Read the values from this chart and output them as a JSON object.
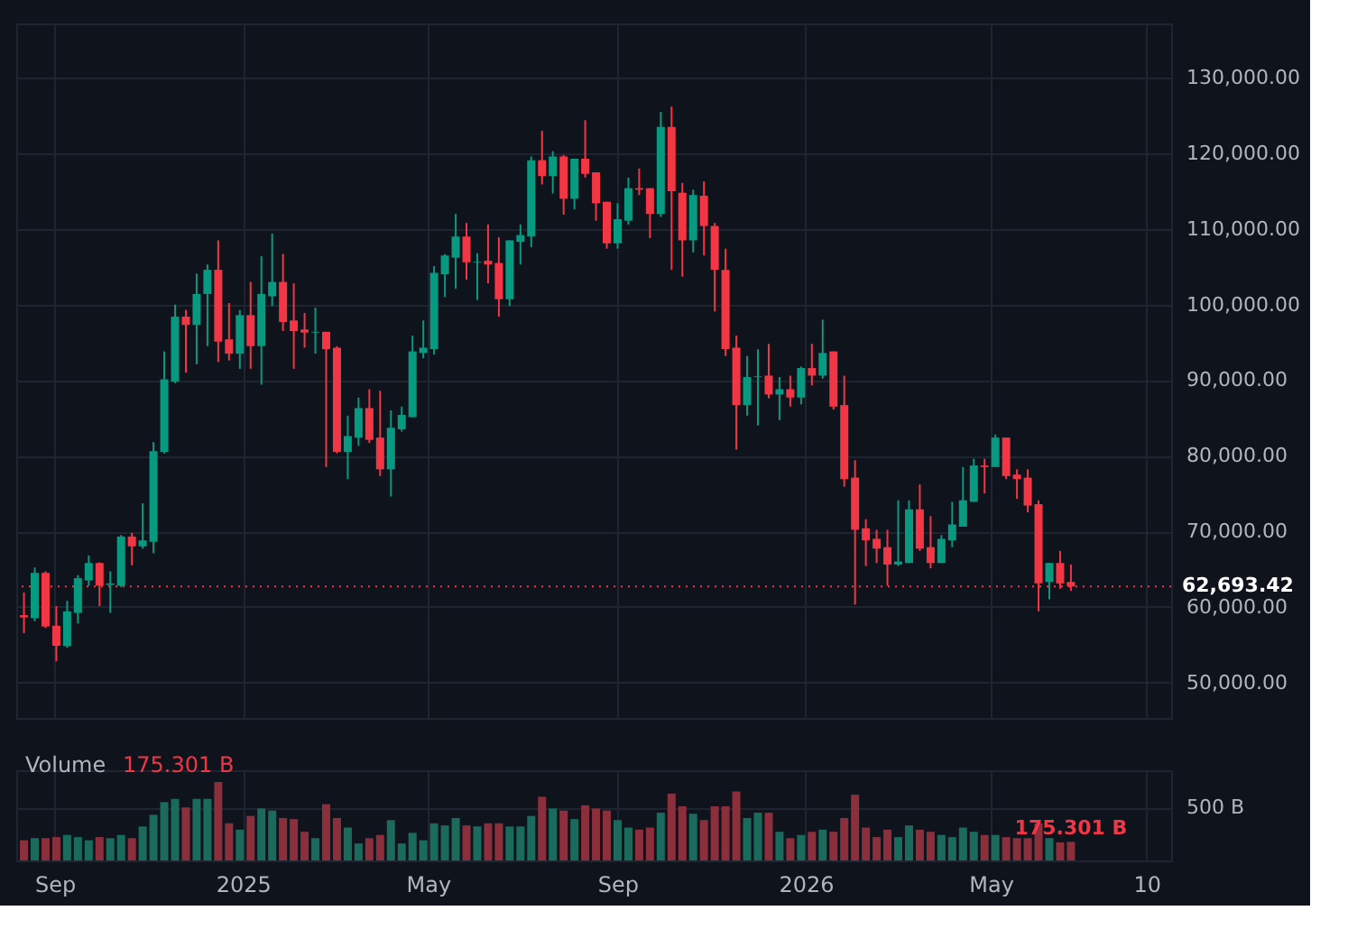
{
  "chart_data": [
    {
      "type": "candlestick",
      "x": [
        "2024-08-12",
        "2024-08-19",
        "2024-08-26",
        "2024-09-02",
        "2024-09-09",
        "2024-09-16",
        "2024-09-23",
        "2024-09-30",
        "2024-10-07",
        "2024-10-14",
        "2024-10-21",
        "2024-10-28",
        "2024-11-04",
        "2024-11-11",
        "2024-11-18",
        "2024-11-25",
        "2024-12-02",
        "2024-12-09",
        "2024-12-16",
        "2024-12-23",
        "2024-12-30",
        "2025-01-06",
        "2025-01-13",
        "2025-01-20",
        "2025-01-27",
        "2025-02-03",
        "2025-02-10",
        "2025-02-17",
        "2025-02-24",
        "2025-03-03",
        "2025-03-10",
        "2025-03-17",
        "2025-03-24",
        "2025-03-31",
        "2025-04-07",
        "2025-04-14",
        "2025-04-21",
        "2025-04-28",
        "2025-05-05",
        "2025-05-12",
        "2025-05-19",
        "2025-05-26",
        "2025-06-02",
        "2025-06-09",
        "2025-06-16",
        "2025-06-23",
        "2025-06-30",
        "2025-07-07",
        "2025-07-14",
        "2025-07-21",
        "2025-07-28",
        "2025-08-04",
        "2025-08-11",
        "2025-08-18",
        "2025-08-25",
        "2025-09-01",
        "2025-09-08",
        "2025-09-15",
        "2025-09-22",
        "2025-09-29",
        "2025-10-06",
        "2025-10-13",
        "2025-10-20",
        "2025-10-27",
        "2025-11-03",
        "2025-11-10",
        "2025-11-17",
        "2025-11-24",
        "2025-12-01",
        "2025-12-08",
        "2025-12-15",
        "2025-12-22",
        "2025-12-29",
        "2026-01-05",
        "2026-01-12",
        "2026-01-19",
        "2026-01-26",
        "2026-02-02",
        "2026-02-09",
        "2026-02-16",
        "2026-02-23",
        "2026-03-02",
        "2026-03-09",
        "2026-03-16",
        "2026-03-23",
        "2026-03-30",
        "2026-04-06",
        "2026-04-13",
        "2026-04-20",
        "2026-04-27",
        "2026-05-04",
        "2026-05-11",
        "2026-05-18",
        "2026-05-25",
        "2026-06-01",
        "2026-06-08",
        "2026-06-15",
        "2026-06-22"
      ],
      "ohlc": [
        [
          58900,
          61900,
          56500,
          58600
        ],
        [
          58500,
          65200,
          58100,
          64500
        ],
        [
          64500,
          64700,
          57200,
          57400
        ],
        [
          57500,
          60100,
          52800,
          54850
        ],
        [
          54800,
          60800,
          54600,
          59400
        ],
        [
          59200,
          64200,
          57800,
          63800
        ],
        [
          63500,
          66800,
          62800,
          65800
        ],
        [
          65800,
          65900,
          60100,
          62800
        ],
        [
          62900,
          64700,
          59200,
          63100
        ],
        [
          62800,
          69500,
          62600,
          69300
        ],
        [
          69300,
          69800,
          65500,
          68000
        ],
        [
          68000,
          73700,
          67700,
          68800
        ],
        [
          68600,
          81800,
          67100,
          80600
        ],
        [
          80500,
          93800,
          80300,
          90100
        ],
        [
          89800,
          100000,
          89600,
          98400
        ],
        [
          98400,
          99300,
          91000,
          97300
        ],
        [
          97300,
          104100,
          92100,
          101400
        ],
        [
          101400,
          105300,
          94500,
          104600
        ],
        [
          104600,
          108500,
          92400,
          95100
        ],
        [
          95400,
          100200,
          92600,
          93500
        ],
        [
          93500,
          99300,
          91500,
          98600
        ],
        [
          98600,
          103000,
          91500,
          94500
        ],
        [
          94500,
          106400,
          89400,
          101400
        ],
        [
          101100,
          109400,
          99800,
          103000
        ],
        [
          103000,
          106700,
          96500,
          97700
        ],
        [
          97900,
          102800,
          91500,
          96500
        ],
        [
          96700,
          98900,
          94300,
          96300
        ],
        [
          96300,
          99600,
          93500,
          96400
        ],
        [
          96400,
          96400,
          78500,
          94100
        ],
        [
          94300,
          94500,
          80300,
          80500
        ],
        [
          80500,
          85300,
          76900,
          82600
        ],
        [
          82400,
          87700,
          81300,
          86300
        ],
        [
          86300,
          88800,
          81700,
          82100
        ],
        [
          82400,
          88600,
          77300,
          78200
        ],
        [
          78200,
          86000,
          74600,
          83700
        ],
        [
          83500,
          86500,
          83200,
          85400
        ],
        [
          85100,
          95900,
          85100,
          93800
        ],
        [
          93600,
          97900,
          92900,
          94300
        ],
        [
          94100,
          105100,
          93400,
          104200
        ],
        [
          104000,
          106700,
          101000,
          106500
        ],
        [
          106200,
          112000,
          102100,
          109000
        ],
        [
          109000,
          110800,
          103300,
          105600
        ],
        [
          105600,
          106800,
          100600,
          105700
        ],
        [
          105800,
          110600,
          102800,
          105300
        ],
        [
          105500,
          108900,
          98400,
          100700
        ],
        [
          100700,
          108500,
          99800,
          108500
        ],
        [
          108300,
          110600,
          105300,
          109200
        ],
        [
          109000,
          119600,
          107600,
          119100
        ],
        [
          119100,
          123000,
          115900,
          117000
        ],
        [
          117000,
          120300,
          114700,
          119600
        ],
        [
          119600,
          119800,
          111900,
          114000
        ],
        [
          114000,
          119300,
          112600,
          119300
        ],
        [
          119300,
          124400,
          116800,
          117300
        ],
        [
          117500,
          117500,
          111100,
          113400
        ],
        [
          113600,
          113600,
          107400,
          108100
        ],
        [
          108100,
          113400,
          107400,
          111300
        ],
        [
          111100,
          116800,
          110600,
          115400
        ],
        [
          115400,
          118000,
          114500,
          115200
        ],
        [
          115400,
          115400,
          108800,
          112000
        ],
        [
          112000,
          125500,
          111600,
          123500
        ],
        [
          123500,
          126200,
          104600,
          115000
        ],
        [
          114800,
          116100,
          103700,
          108500
        ],
        [
          108500,
          115200,
          106900,
          114500
        ],
        [
          114400,
          116300,
          106500,
          110400
        ],
        [
          110400,
          110800,
          99100,
          104600
        ],
        [
          104600,
          107400,
          93200,
          94100
        ],
        [
          94300,
          95900,
          80800,
          86700
        ],
        [
          86700,
          93200,
          85300,
          90400
        ],
        [
          90400,
          94100,
          84000,
          90500
        ],
        [
          90600,
          94800,
          87600,
          88100
        ],
        [
          88100,
          90400,
          84700,
          88800
        ],
        [
          88800,
          90600,
          86500,
          87700
        ],
        [
          87700,
          91800,
          86800,
          91600
        ],
        [
          91600,
          94800,
          89300,
          90600
        ],
        [
          90600,
          98000,
          90200,
          93600
        ],
        [
          93800,
          93800,
          86100,
          86500
        ],
        [
          86700,
          90600,
          75900,
          76900
        ],
        [
          77100,
          79400,
          60300,
          70200
        ],
        [
          70400,
          71600,
          65400,
          68800
        ],
        [
          69000,
          70200,
          65800,
          67700
        ],
        [
          67900,
          70200,
          62800,
          65600
        ],
        [
          65600,
          74100,
          65400,
          66000
        ],
        [
          65800,
          74100,
          65800,
          72900
        ],
        [
          72900,
          76200,
          67400,
          67700
        ],
        [
          67900,
          72000,
          65100,
          65800
        ],
        [
          65800,
          69500,
          65800,
          69000
        ],
        [
          68800,
          73900,
          67900,
          70900
        ],
        [
          70600,
          78500,
          70600,
          74100
        ],
        [
          73900,
          79600,
          73900,
          78700
        ],
        [
          78700,
          79600,
          75000,
          78500
        ],
        [
          78500,
          82800,
          78500,
          82400
        ],
        [
          82400,
          82400,
          76900,
          77300
        ],
        [
          77500,
          78200,
          74300,
          76900
        ],
        [
          77100,
          78200,
          72500,
          73400
        ],
        [
          73600,
          74100,
          59400,
          63100
        ],
        [
          63300,
          65800,
          61000,
          65800
        ],
        [
          65800,
          67400,
          62400,
          63100
        ],
        [
          63300,
          65600,
          62100,
          62693.42
        ]
      ],
      "colors": [
        "#f23645",
        "#089981",
        "#f23645",
        "#f23645",
        "#089981",
        "#089981",
        "#089981",
        "#f23645",
        "#089981",
        "#089981",
        "#f23645",
        "#089981",
        "#089981",
        "#089981",
        "#089981",
        "#f23645",
        "#089981",
        "#089981",
        "#f23645",
        "#f23645",
        "#089981",
        "#f23645",
        "#089981",
        "#089981",
        "#f23645",
        "#f23645",
        "#f23645",
        "#089981",
        "#f23645",
        "#f23645",
        "#089981",
        "#089981",
        "#f23645",
        "#f23645",
        "#089981",
        "#089981",
        "#089981",
        "#089981",
        "#089981",
        "#089981",
        "#089981",
        "#f23645",
        "#089981",
        "#f23645",
        "#f23645",
        "#089981",
        "#089981",
        "#089981",
        "#f23645",
        "#089981",
        "#f23645",
        "#089981",
        "#f23645",
        "#f23645",
        "#f23645",
        "#089981",
        "#089981",
        "#f23645",
        "#f23645",
        "#089981",
        "#f23645",
        "#f23645",
        "#089981",
        "#f23645",
        "#f23645",
        "#f23645",
        "#f23645",
        "#089981",
        "#089981",
        "#f23645",
        "#089981",
        "#f23645",
        "#089981",
        "#f23645",
        "#089981",
        "#f23645",
        "#f23645",
        "#f23645",
        "#f23645",
        "#f23645",
        "#f23645",
        "#089981",
        "#089981",
        "#f23645",
        "#f23645",
        "#089981",
        "#089981",
        "#089981",
        "#089981",
        "#f23645",
        "#089981",
        "#f23645",
        "#f23645",
        "#f23645",
        "#f23645",
        "#089981",
        "#f23645",
        "#f23645"
      ],
      "xlim": [
        "2024-08-07",
        "2026-08-26"
      ],
      "ylim": [
        45300,
        137200
      ],
      "yticks": [
        {
          "value": 50000,
          "label": "50,000.00"
        },
        {
          "value": 60000,
          "label": "60,000.00"
        },
        {
          "value": 70000,
          "label": "70,000.00"
        },
        {
          "value": 80000,
          "label": "80,000.00"
        },
        {
          "value": 90000,
          "label": "90,000.00"
        },
        {
          "value": 100000,
          "label": "100,000.00"
        },
        {
          "value": 110000,
          "label": "110,000.00"
        },
        {
          "value": 120000,
          "label": "120,000.00"
        },
        {
          "value": 130000,
          "label": "130,000.00"
        }
      ],
      "ref_lines": [
        {
          "axis": "y",
          "value": 62693.42,
          "label": "62,693.42",
          "color": "#f23645",
          "line_style": "dotted"
        }
      ],
      "grid": true,
      "tick_labels": "y"
    },
    {
      "type": "bar",
      "title": "Volume",
      "annotations": [
        "175.301 B"
      ],
      "x": [
        "2024-08-12",
        "2024-08-19",
        "2024-08-26",
        "2024-09-02",
        "2024-09-09",
        "2024-09-16",
        "2024-09-23",
        "2024-09-30",
        "2024-10-07",
        "2024-10-14",
        "2024-10-21",
        "2024-10-28",
        "2024-11-04",
        "2024-11-11",
        "2024-11-18",
        "2024-11-25",
        "2024-12-02",
        "2024-12-09",
        "2024-12-16",
        "2024-12-23",
        "2024-12-30",
        "2025-01-06",
        "2025-01-13",
        "2025-01-20",
        "2025-01-27",
        "2025-02-03",
        "2025-02-10",
        "2025-02-17",
        "2025-02-24",
        "2025-03-03",
        "2025-03-10",
        "2025-03-17",
        "2025-03-24",
        "2025-03-31",
        "2025-04-07",
        "2025-04-14",
        "2025-04-21",
        "2025-04-28",
        "2025-05-05",
        "2025-05-12",
        "2025-05-19",
        "2025-05-26",
        "2025-06-02",
        "2025-06-09",
        "2025-06-16",
        "2025-06-23",
        "2025-06-30",
        "2025-07-07",
        "2025-07-14",
        "2025-07-21",
        "2025-07-28",
        "2025-08-04",
        "2025-08-11",
        "2025-08-18",
        "2025-08-25",
        "2025-09-01",
        "2025-09-08",
        "2025-09-15",
        "2025-09-22",
        "2025-09-29",
        "2025-10-06",
        "2025-10-13",
        "2025-10-20",
        "2025-10-27",
        "2025-11-03",
        "2025-11-10",
        "2025-11-17",
        "2025-11-24",
        "2025-12-01",
        "2025-12-08",
        "2025-12-15",
        "2025-12-22",
        "2025-12-29",
        "2026-01-05",
        "2026-01-12",
        "2026-01-19",
        "2026-01-26",
        "2026-02-02",
        "2026-02-09",
        "2026-02-16",
        "2026-02-23",
        "2026-03-02",
        "2026-03-09",
        "2026-03-16",
        "2026-03-23",
        "2026-03-30",
        "2026-04-06",
        "2026-04-13",
        "2026-04-20",
        "2026-04-27",
        "2026-05-04",
        "2026-05-11",
        "2026-05-18",
        "2026-05-25",
        "2026-06-01",
        "2026-06-08",
        "2026-06-15",
        "2026-06-22"
      ],
      "values": [
        190,
        210,
        210,
        220,
        240,
        220,
        190,
        220,
        210,
        240,
        210,
        320,
        430,
        550,
        580,
        500,
        580,
        580,
        740,
        350,
        290,
        420,
        490,
        470,
        400,
        390,
        270,
        210,
        530,
        400,
        310,
        160,
        210,
        240,
        380,
        160,
        260,
        190,
        350,
        330,
        400,
        330,
        320,
        350,
        350,
        320,
        320,
        420,
        600,
        490,
        470,
        390,
        520,
        490,
        470,
        380,
        310,
        290,
        310,
        450,
        630,
        510,
        440,
        380,
        510,
        510,
        650,
        400,
        450,
        450,
        270,
        210,
        240,
        270,
        290,
        270,
        400,
        620,
        310,
        220,
        290,
        220,
        330,
        290,
        270,
        240,
        220,
        310,
        270,
        240,
        240,
        220,
        210,
        210,
        350,
        210,
        170,
        175.301
      ],
      "colors": [
        "#8b2f3c",
        "#1b6b5d",
        "#8b2f3c",
        "#8b2f3c",
        "#1b6b5d",
        "#1b6b5d",
        "#1b6b5d",
        "#8b2f3c",
        "#1b6b5d",
        "#1b6b5d",
        "#8b2f3c",
        "#1b6b5d",
        "#1b6b5d",
        "#1b6b5d",
        "#1b6b5d",
        "#8b2f3c",
        "#1b6b5d",
        "#1b6b5d",
        "#8b2f3c",
        "#8b2f3c",
        "#1b6b5d",
        "#8b2f3c",
        "#1b6b5d",
        "#1b6b5d",
        "#8b2f3c",
        "#8b2f3c",
        "#8b2f3c",
        "#1b6b5d",
        "#8b2f3c",
        "#8b2f3c",
        "#1b6b5d",
        "#1b6b5d",
        "#8b2f3c",
        "#8b2f3c",
        "#1b6b5d",
        "#1b6b5d",
        "#1b6b5d",
        "#1b6b5d",
        "#1b6b5d",
        "#1b6b5d",
        "#1b6b5d",
        "#8b2f3c",
        "#1b6b5d",
        "#8b2f3c",
        "#8b2f3c",
        "#1b6b5d",
        "#1b6b5d",
        "#1b6b5d",
        "#8b2f3c",
        "#1b6b5d",
        "#8b2f3c",
        "#1b6b5d",
        "#8b2f3c",
        "#8b2f3c",
        "#8b2f3c",
        "#1b6b5d",
        "#1b6b5d",
        "#8b2f3c",
        "#8b2f3c",
        "#1b6b5d",
        "#8b2f3c",
        "#8b2f3c",
        "#1b6b5d",
        "#8b2f3c",
        "#8b2f3c",
        "#8b2f3c",
        "#8b2f3c",
        "#1b6b5d",
        "#1b6b5d",
        "#8b2f3c",
        "#1b6b5d",
        "#8b2f3c",
        "#1b6b5d",
        "#8b2f3c",
        "#1b6b5d",
        "#8b2f3c",
        "#8b2f3c",
        "#8b2f3c",
        "#8b2f3c",
        "#8b2f3c",
        "#8b2f3c",
        "#1b6b5d",
        "#1b6b5d",
        "#8b2f3c",
        "#8b2f3c",
        "#1b6b5d",
        "#1b6b5d",
        "#1b6b5d",
        "#1b6b5d",
        "#8b2f3c",
        "#1b6b5d",
        "#8b2f3c",
        "#8b2f3c",
        "#8b2f3c",
        "#8b2f3c",
        "#1b6b5d",
        "#8b2f3c",
        "#8b2f3c"
      ],
      "value_labels": [
        null,
        null,
        null,
        null,
        null,
        null,
        null,
        null,
        null,
        null,
        null,
        null,
        null,
        null,
        null,
        null,
        null,
        null,
        null,
        null,
        null,
        null,
        null,
        null,
        null,
        null,
        null,
        null,
        null,
        null,
        null,
        null,
        null,
        null,
        null,
        null,
        null,
        null,
        null,
        null,
        null,
        null,
        null,
        null,
        null,
        null,
        null,
        null,
        null,
        null,
        null,
        null,
        null,
        null,
        null,
        null,
        null,
        null,
        null,
        null,
        null,
        null,
        null,
        null,
        null,
        null,
        null,
        null,
        null,
        null,
        null,
        null,
        null,
        null,
        null,
        null,
        null,
        null,
        null,
        null,
        null,
        null,
        null,
        null,
        null,
        null,
        null,
        null,
        null,
        null,
        null,
        null,
        null,
        null,
        null,
        null,
        null,
        "175.301 B"
      ],
      "xlim": [
        "2024-08-07",
        "2026-08-26"
      ],
      "xticks": [
        {
          "value": "2024-09-01",
          "label": "Sep"
        },
        {
          "value": "2025-01-01",
          "label": "2025"
        },
        {
          "value": "2025-05-01",
          "label": "May"
        },
        {
          "value": "2025-09-01",
          "label": "Sep"
        },
        {
          "value": "2026-01-01",
          "label": "2026"
        },
        {
          "value": "2026-05-01",
          "label": "May"
        },
        {
          "value": "2026-08-10",
          "label": "10"
        }
      ],
      "ylim": [
        0,
        850
      ],
      "yticks": [
        {
          "value": 500,
          "label": "500 B"
        }
      ],
      "grid": true
    }
  ]
}
